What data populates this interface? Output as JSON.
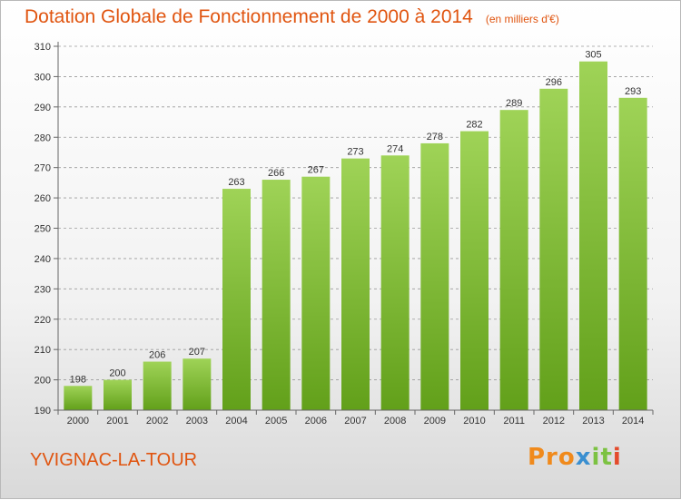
{
  "header": {
    "title": "Dotation Globale de Fonctionnement de 2000 à 2014",
    "unit_note": "(en milliers d'€)"
  },
  "footer": {
    "place": "YVIGNAC-LA-TOUR",
    "logo_text": "Proxiti"
  },
  "colors": {
    "title": "#e0540f",
    "bar_top": "#9fd357",
    "bar_bottom": "#62a01a",
    "grid": "#9a9a9a"
  },
  "chart_data": {
    "type": "bar",
    "title": "Dotation Globale de Fonctionnement de 2000 à 2014",
    "subtitle": "(en milliers d'€)",
    "categories": [
      "2000",
      "2001",
      "2002",
      "2003",
      "2004",
      "2005",
      "2006",
      "2007",
      "2008",
      "2009",
      "2010",
      "2011",
      "2012",
      "2013",
      "2014"
    ],
    "values": [
      198,
      200,
      206,
      207,
      263,
      266,
      267,
      273,
      274,
      278,
      282,
      289,
      296,
      305,
      293
    ],
    "ylim": [
      190,
      310
    ],
    "yticks": [
      190,
      200,
      210,
      220,
      230,
      240,
      250,
      260,
      270,
      280,
      290,
      300,
      310
    ],
    "grid": "horizontal dashed",
    "xlabel": "",
    "ylabel": ""
  }
}
